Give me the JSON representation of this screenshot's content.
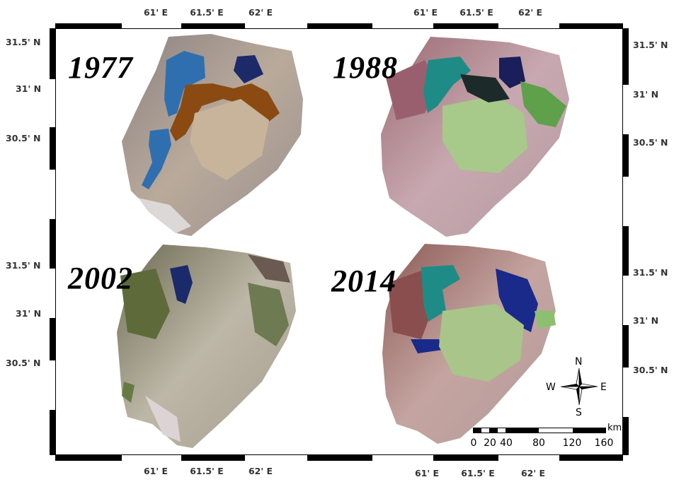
{
  "top_lon_labels_left": [
    "61' E",
    "61.5' E",
    "62' E"
  ],
  "top_lon_labels_right": [
    "61' E",
    "61.5' E",
    "62' E"
  ],
  "bottom_lon_labels_left": [
    "61' E",
    "61.5' E",
    "62' E"
  ],
  "bottom_lon_labels_right": [
    "61' E",
    "61.5' E",
    "62' E"
  ],
  "left_lat_labels_top": [
    "31.5' N",
    "31' N",
    "30.5' N"
  ],
  "left_lat_labels_bottom": [
    "31.5' N",
    "31' N",
    "30.5' N"
  ],
  "right_lat_labels_top": [
    "31.5' N",
    "31' N",
    "30.5' N"
  ],
  "right_lat_labels_bottom": [
    "31.5' N",
    "31' N",
    "30.5' N"
  ],
  "panels": [
    {
      "year": "1977"
    },
    {
      "year": "1988"
    },
    {
      "year": "2002"
    },
    {
      "year": "2014"
    }
  ],
  "compass": {
    "n": "N",
    "s": "S",
    "e": "E",
    "w": "W",
    "icon": "compass-rose-icon"
  },
  "scale_bar": {
    "unit": "km",
    "ticks": [
      "0",
      "20",
      "40",
      "80",
      "120",
      "160"
    ]
  },
  "colors": {
    "water_1977": "#2f6fb0",
    "vegetation_1977": "#8a4a12",
    "water_1988": "#1f8b86",
    "vegetation_1988": "#a7c98a",
    "water_2014": "#1a2a8a",
    "vegetation_2014": "#a9c58a"
  }
}
